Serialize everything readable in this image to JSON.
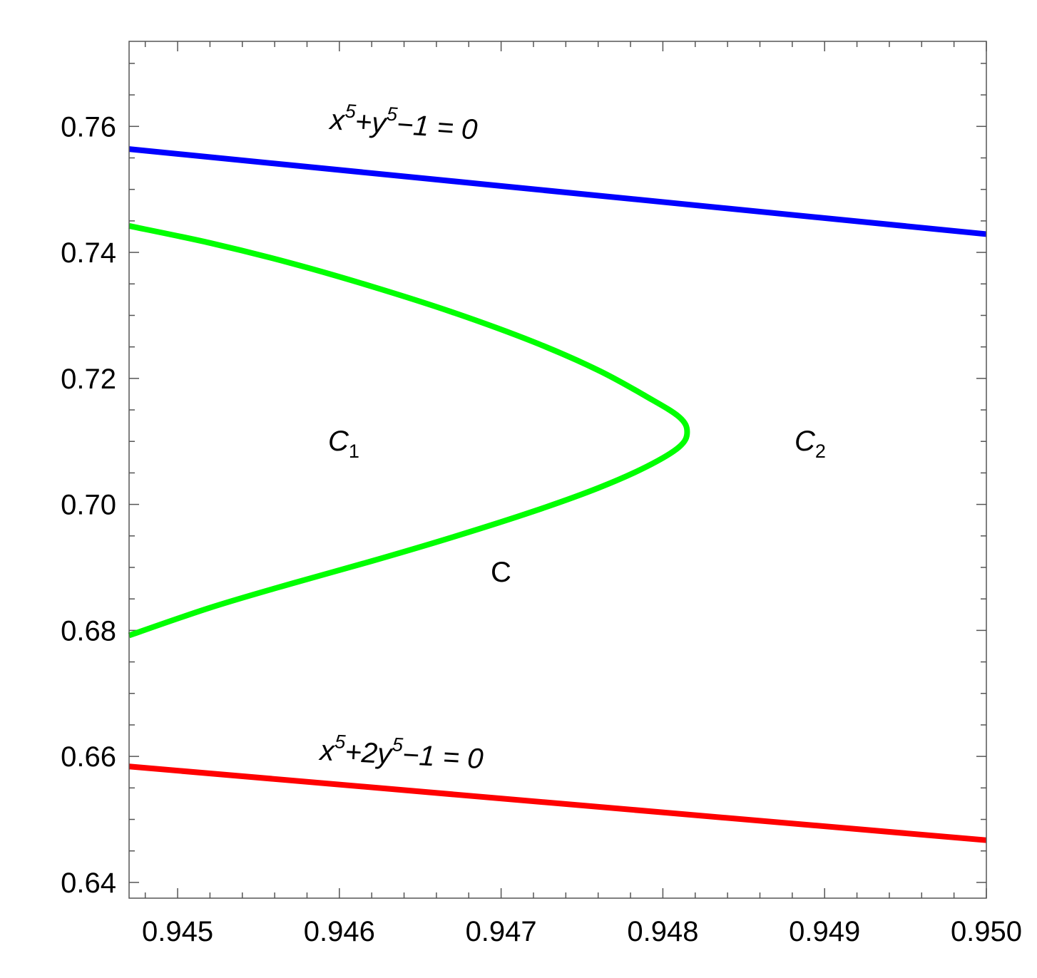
{
  "chart_data": {
    "type": "line",
    "xlim": [
      0.9447,
      0.95
    ],
    "ylim": [
      0.6375,
      0.7735
    ],
    "x_ticks": [
      0.945,
      0.946,
      0.947,
      0.948,
      0.949,
      0.95
    ],
    "x_tick_labels": [
      "0.945",
      "0.946",
      "0.947",
      "0.948",
      "0.949",
      "0.950"
    ],
    "x_minor_step": 0.0002,
    "y_ticks": [
      0.64,
      0.66,
      0.68,
      0.7,
      0.72,
      0.74,
      0.76
    ],
    "y_tick_labels": [
      "0.64",
      "0.66",
      "0.68",
      "0.70",
      "0.72",
      "0.74",
      "0.76"
    ],
    "y_minor_step": 0.005,
    "grid": false,
    "frame": true,
    "series": [
      {
        "color": "#0000ff",
        "x": [
          0.9447,
          0.95
        ],
        "y": [
          0.7564,
          0.7429
        ]
      },
      {
        "color": "#00ff00",
        "x": [
          0.9447,
          0.9452,
          0.9457,
          0.9462,
          0.9467,
          0.9472,
          0.9476,
          0.9479,
          0.9481,
          0.94815,
          0.9481,
          0.9479,
          0.9476,
          0.9472,
          0.9467,
          0.9462,
          0.9457,
          0.9452,
          0.9447
        ],
        "y": [
          0.7442,
          0.7415,
          0.7383,
          0.7346,
          0.7305,
          0.7258,
          0.7213,
          0.7171,
          0.7139,
          0.7115,
          0.7091,
          0.706,
          0.7026,
          0.6989,
          0.6948,
          0.691,
          0.6874,
          0.6836,
          0.6792
        ]
      },
      {
        "color": "#ff0000",
        "x": [
          0.9447,
          0.95
        ],
        "y": [
          0.6584,
          0.6467
        ]
      }
    ],
    "annotations": {
      "blue_curve": {
        "text": "x^5+y^5−1 = 0",
        "base1": "x",
        "sup1": "5",
        "mid": "+y",
        "sup2": "5",
        "rest": "−1 = 0"
      },
      "red_curve": {
        "text": "x^5+2y^5−1 = 0",
        "base1": "x",
        "sup1": "5",
        "mid": "+2y",
        "sup2": "5",
        "rest": "−1 = 0"
      },
      "region_left": {
        "base": "C",
        "sub": "1"
      },
      "region_right": {
        "base": "C",
        "sub": "2"
      },
      "curve_label": {
        "text": "C"
      }
    }
  }
}
